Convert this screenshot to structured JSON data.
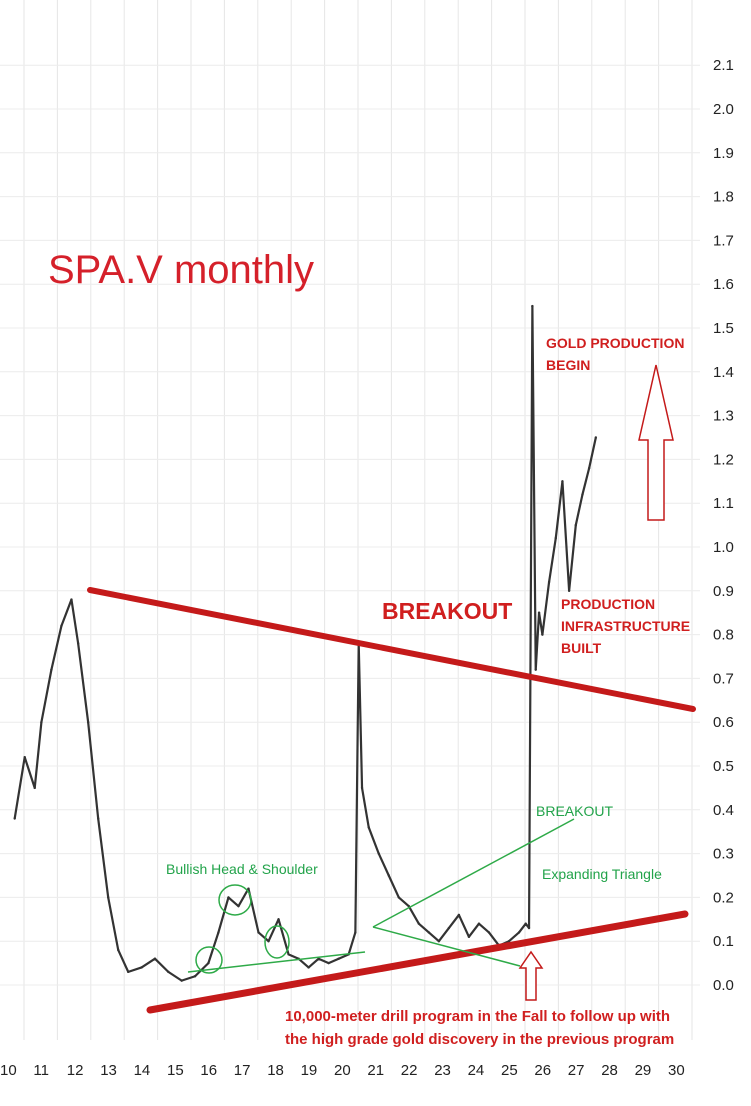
{
  "chart_data": {
    "type": "line",
    "title": "SPA.V  monthly",
    "x_ticks": [
      "10",
      "11",
      "12",
      "13",
      "14",
      "15",
      "16",
      "17",
      "18",
      "19",
      "20",
      "21",
      "22",
      "23",
      "24",
      "25",
      "26",
      "27",
      "28",
      "29",
      "30"
    ],
    "y_ticks": [
      "2.1",
      "2.0",
      "1.9",
      "1.8",
      "1.7",
      "1.6",
      "1.5",
      "1.4",
      "1.3",
      "1.2",
      "1.1",
      "1.0",
      "0.9",
      "0.8",
      "0.7",
      "0.6",
      "0.5",
      "0.4",
      "0.3",
      "0.2",
      "0.1",
      "0.0"
    ],
    "grid": true,
    "series": [
      {
        "x": [
          10.2,
          10.5,
          10.8,
          11.0,
          11.3,
          11.6,
          11.9,
          12.1,
          12.4,
          12.7,
          13.0,
          13.3,
          13.6,
          14.0,
          14.4,
          14.8,
          15.2,
          15.6,
          16.0,
          16.3,
          16.6,
          16.9,
          17.2,
          17.5,
          17.8,
          18.1,
          18.4,
          18.7,
          19.0,
          19.3,
          19.6,
          19.9,
          20.2,
          20.4,
          20.5,
          20.6,
          20.8,
          21.1,
          21.4,
          21.7,
          22.0,
          22.3,
          22.6,
          22.9,
          23.2,
          23.5,
          23.8,
          24.1,
          24.4,
          24.7,
          25.0,
          25.3,
          25.5,
          25.6,
          25.7,
          25.8,
          25.9,
          26.0,
          26.2,
          26.4,
          26.6,
          26.8,
          27.0,
          27.2,
          27.4,
          27.6
        ],
        "y": [
          0.38,
          0.52,
          0.45,
          0.6,
          0.72,
          0.82,
          0.88,
          0.78,
          0.6,
          0.38,
          0.2,
          0.08,
          0.03,
          0.04,
          0.06,
          0.03,
          0.01,
          0.02,
          0.05,
          0.12,
          0.2,
          0.18,
          0.22,
          0.12,
          0.1,
          0.15,
          0.07,
          0.06,
          0.04,
          0.06,
          0.05,
          0.06,
          0.07,
          0.12,
          0.78,
          0.45,
          0.36,
          0.3,
          0.25,
          0.2,
          0.18,
          0.14,
          0.12,
          0.1,
          0.13,
          0.16,
          0.11,
          0.14,
          0.12,
          0.09,
          0.1,
          0.12,
          0.14,
          0.13,
          1.55,
          0.72,
          0.85,
          0.8,
          0.92,
          1.02,
          1.15,
          0.9,
          1.05,
          1.12,
          1.18,
          1.25
        ]
      }
    ],
    "annotations": [
      {
        "text": "BREAKOUT"
      },
      {
        "text": "GOLD PRODUCTION BEGIN"
      },
      {
        "text": "PRODUCTION INFRASTRUCTURE BUILT"
      },
      {
        "text": "BREAKOUT"
      },
      {
        "text": "Expanding Triangle"
      },
      {
        "text": "Bullish Head & Shoulder"
      },
      {
        "text": "10,000-meter drill program in the Fall to follow up with"
      },
      {
        "text": "the high grade gold discovery in the previous program"
      }
    ],
    "line_color": "#333333",
    "trendline_color": "#c41a1a",
    "pattern_color": "#2eaa48"
  },
  "labels": {
    "title": "SPA.V  monthly",
    "breakout_red": "BREAKOUT",
    "gold_line1": "GOLD PRODUCTION",
    "gold_line2": "BEGIN",
    "prod_line1": "PRODUCTION",
    "prod_line2": "INFRASTRUCTURE",
    "prod_line3": "BUILT",
    "breakout_green": "BREAKOUT",
    "expanding": "Expanding Triangle",
    "bullish": "Bullish Head & Shoulder",
    "note_line1": "10,000-meter drill program in the Fall to follow up with",
    "note_line2": "the high grade gold discovery in the previous program"
  }
}
